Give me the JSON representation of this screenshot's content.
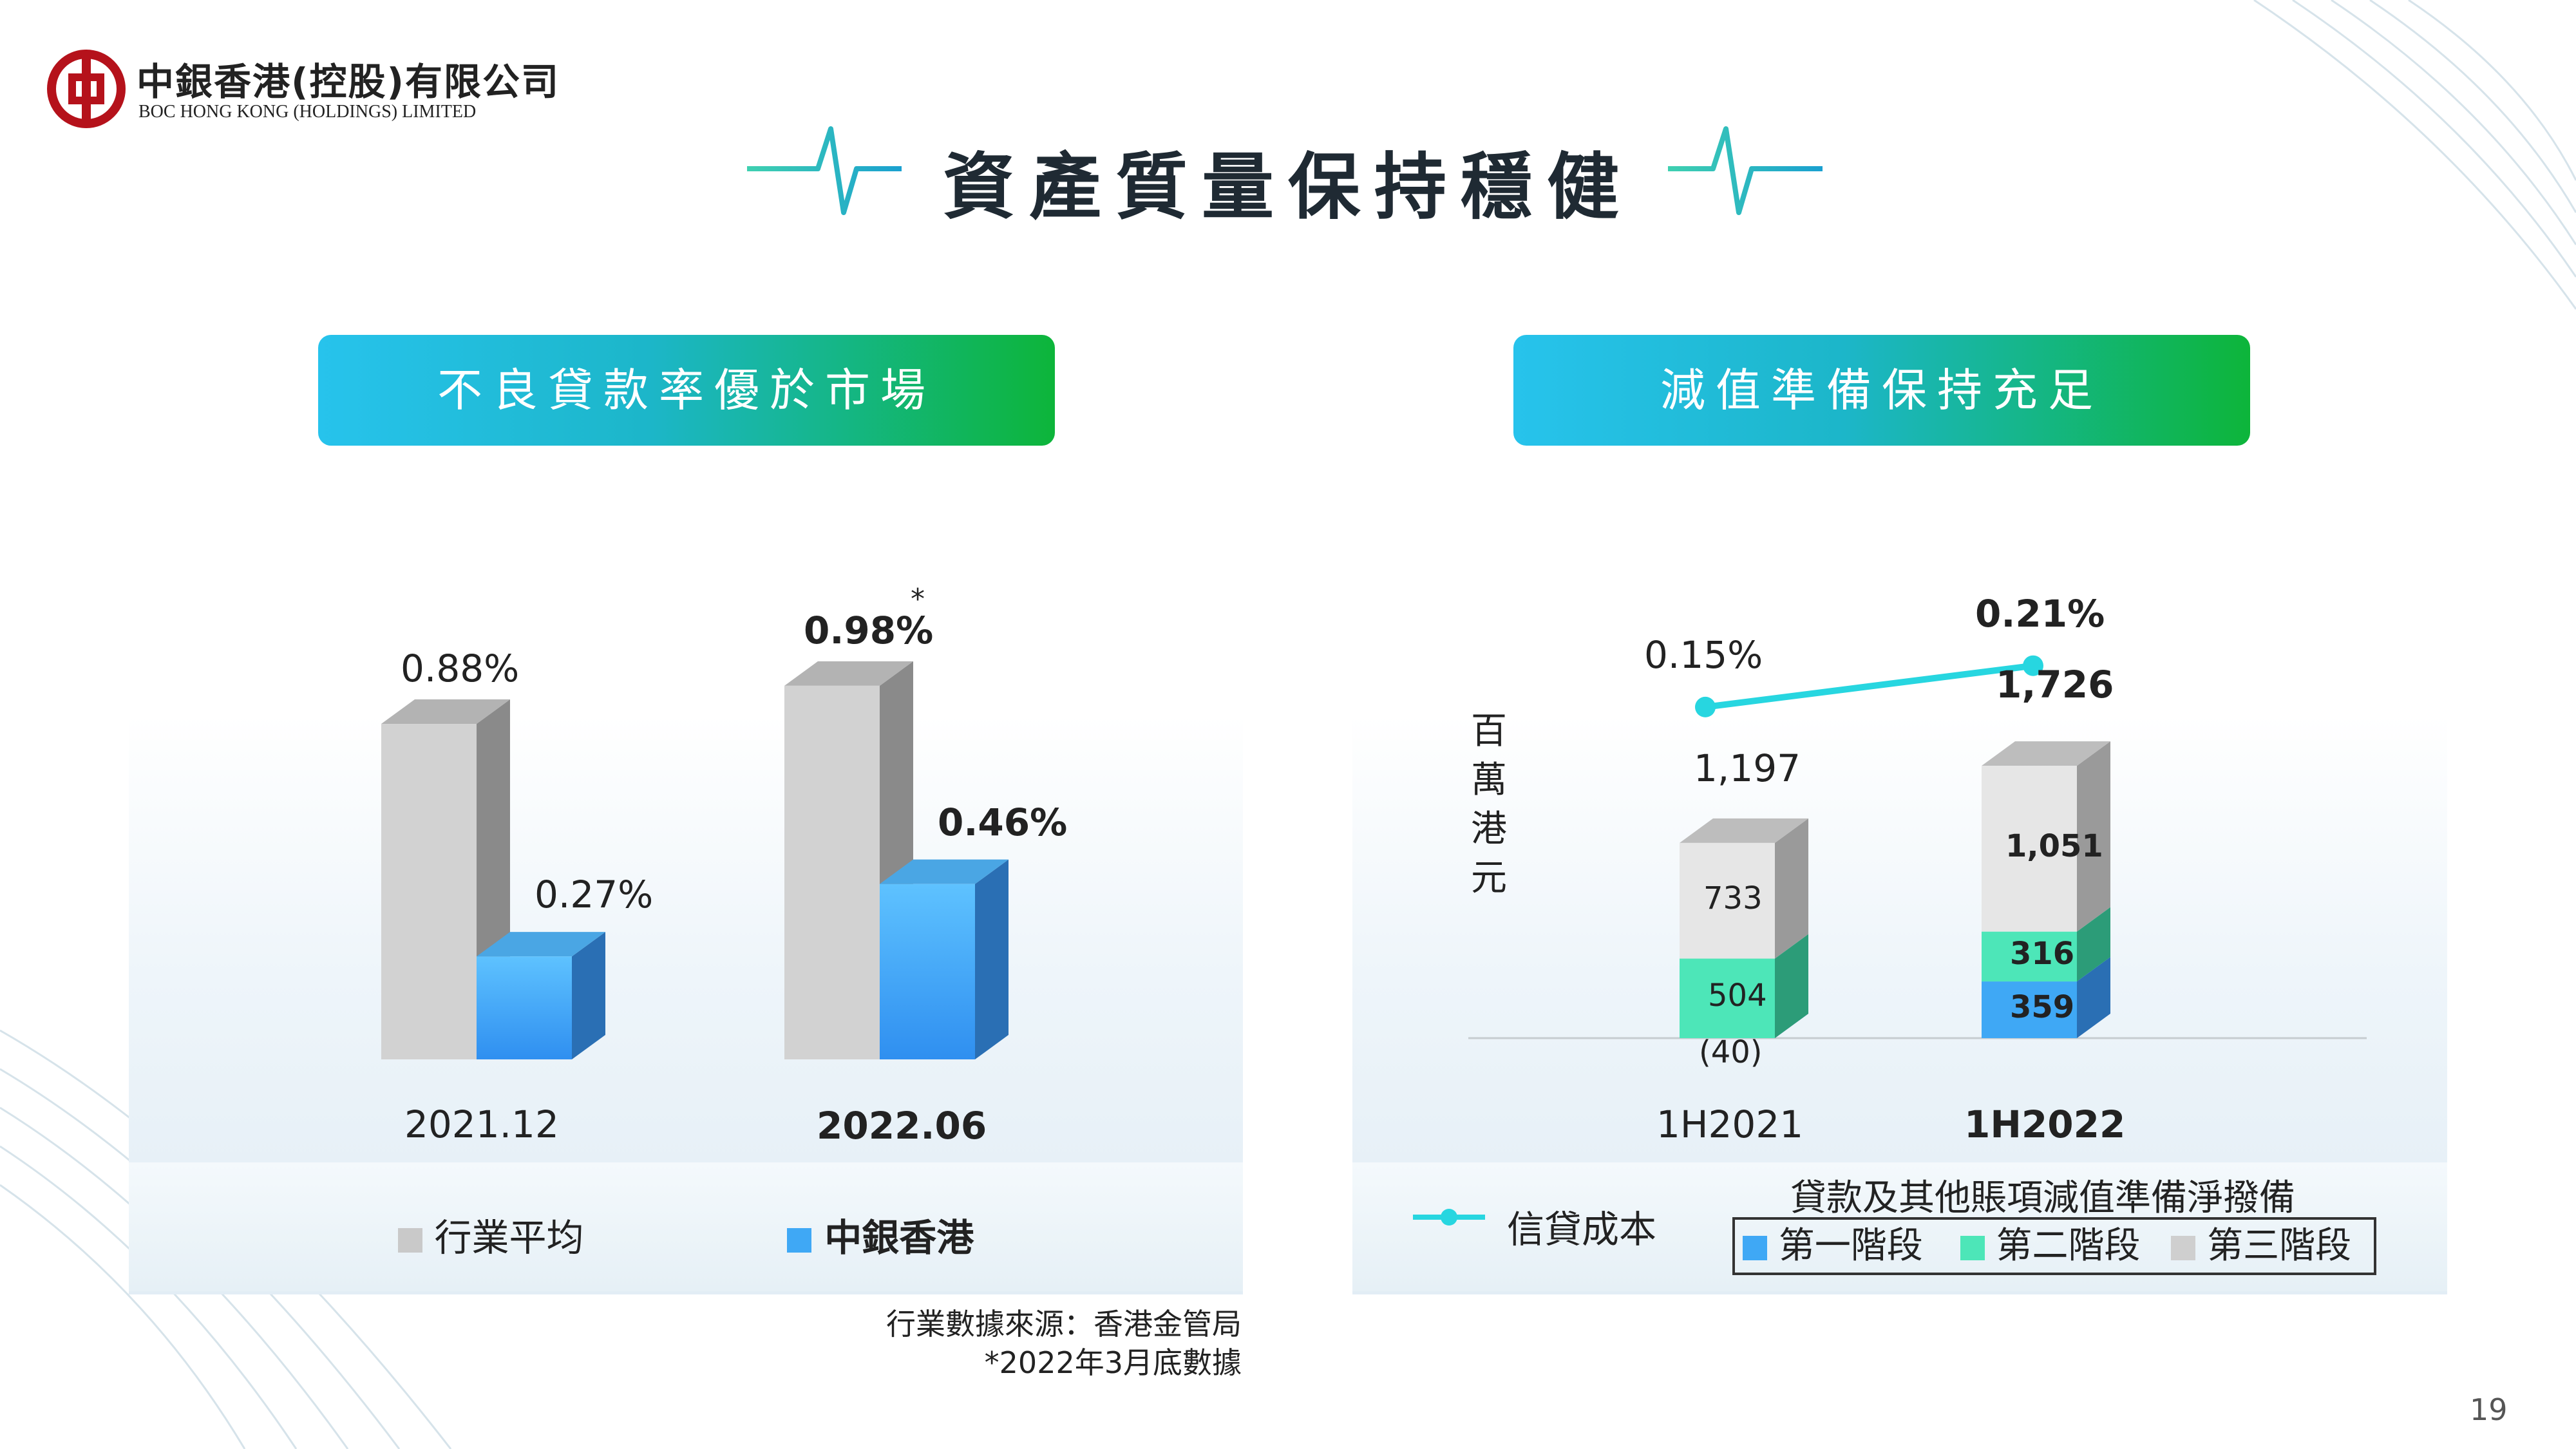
{
  "logo": {
    "name_cn": "中銀香港(控股)有限公司",
    "name_en": "BOC HONG KONG (HOLDINGS) LIMITED"
  },
  "title": "資產質量保持穩健",
  "page_number": "19",
  "left_panel": {
    "header": "不良貸款率優於市場",
    "legend": {
      "industry": "行業平均",
      "bochk": "中銀香港"
    },
    "source": "行業數據來源：香港金管局",
    "footnote": "*2022年3月底數據",
    "asterisk": "*"
  },
  "right_panel": {
    "header": "減值準備保持充足",
    "y_unit": [
      "百",
      "萬",
      "港",
      "元"
    ],
    "legend": {
      "credit_cost": "信貸成本",
      "group_title": "貸款及其他賬項減值準備淨撥備",
      "stage1": "第一階段",
      "stage2": "第二階段",
      "stage3": "第三階段"
    }
  },
  "colors": {
    "gray": "#cfcfcf",
    "blue": "#3fa8f5",
    "teal": "#4de6b8",
    "line": "#27d6e0",
    "accent_green": "#0db53a"
  },
  "chart_data": [
    {
      "type": "bar",
      "title": "不良貸款率優於市場",
      "categories": [
        "2021.12",
        "2022.06"
      ],
      "series": [
        {
          "name": "行業平均",
          "values": [
            0.88,
            0.98
          ],
          "labels": [
            "0.88%",
            "0.98%"
          ]
        },
        {
          "name": "中銀香港",
          "values": [
            0.27,
            0.46
          ],
          "labels": [
            "0.27%",
            "0.46%"
          ]
        }
      ],
      "unit": "%"
    },
    {
      "type": "bar",
      "stacked": true,
      "title": "減值準備保持充足",
      "ylabel": "百萬港元",
      "categories": [
        "1H2021",
        "1H2022"
      ],
      "series": [
        {
          "name": "第一階段",
          "values": [
            -40,
            359
          ],
          "labels": [
            "(40)",
            "359"
          ]
        },
        {
          "name": "第二階段",
          "values": [
            504,
            316
          ],
          "labels": [
            "504",
            "316"
          ]
        },
        {
          "name": "第三階段",
          "values": [
            733,
            1051
          ],
          "labels": [
            "733",
            "1,051"
          ]
        }
      ],
      "totals": [
        1197,
        1726
      ],
      "total_labels": [
        "1,197",
        "1,726"
      ]
    },
    {
      "type": "line",
      "categories": [
        "1H2021",
        "1H2022"
      ],
      "series": [
        {
          "name": "信貸成本",
          "values": [
            0.15,
            0.21
          ],
          "labels": [
            "0.15%",
            "0.21%"
          ]
        }
      ],
      "unit": "%"
    }
  ]
}
